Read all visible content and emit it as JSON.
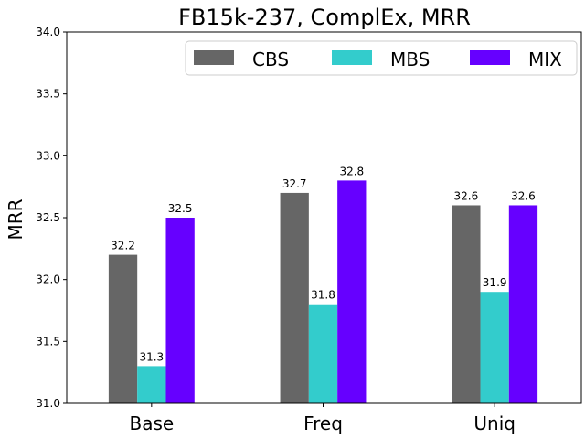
{
  "chart_data": {
    "type": "bar",
    "title": "FB15k-237, ComplEx, MRR",
    "xlabel": "",
    "ylabel": "MRR",
    "categories": [
      "Base",
      "Freq",
      "Uniq"
    ],
    "series": [
      {
        "name": "CBS",
        "color": "#666666",
        "values": [
          32.2,
          32.7,
          32.6
        ]
      },
      {
        "name": "MBS",
        "color": "#33cccc",
        "values": [
          31.3,
          31.8,
          31.9
        ]
      },
      {
        "name": "MIX",
        "color": "#6600ff",
        "values": [
          32.5,
          32.8,
          32.6
        ]
      }
    ],
    "ylim": [
      31.0,
      34.0
    ],
    "yticks": [
      "31.0",
      "31.5",
      "32.0",
      "32.5",
      "33.0",
      "33.5",
      "34.0"
    ],
    "grid": false,
    "legend_position": "top-right"
  }
}
